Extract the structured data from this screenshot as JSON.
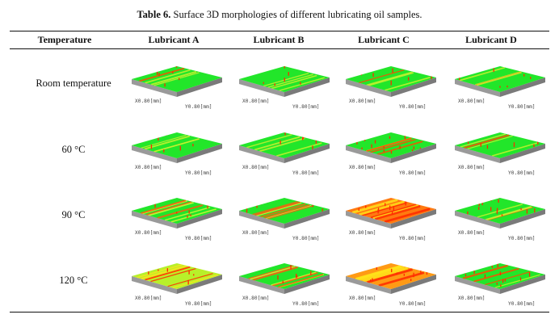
{
  "caption": {
    "label": "Table 6.",
    "text": " Surface 3D morphologies of different lubricating oil samples."
  },
  "table": {
    "header_first": "Temperature",
    "columns": [
      "Lubricant A",
      "Lubricant B",
      "Lubricant C",
      "Lubricant D"
    ],
    "rows": [
      {
        "label": "Room temperature",
        "surfaces": [
          "green-low-wear",
          "green-low-wear",
          "green-low-wear",
          "green-low-wear"
        ]
      },
      {
        "label": "60 °C",
        "surfaces": [
          "green-low-wear",
          "green-low-wear",
          "green-red-spots",
          "green-low-wear"
        ]
      },
      {
        "label": "90 °C",
        "surfaces": [
          "green-striped",
          "green-striped",
          "red-orange-heavy",
          "green-red-spots"
        ]
      },
      {
        "label": "120 °C",
        "surfaces": [
          "yellow-red-striped",
          "green-striped",
          "orange-red-heavy",
          "green-red-spots"
        ]
      }
    ],
    "axis_x_label": "X0.80[mm]",
    "axis_y_label": "Y0.80[mm]"
  },
  "colors": {
    "base": "#22e62a",
    "warm": "#ffe21a",
    "hot": "#ff2a00",
    "side": "#8c8c8c"
  }
}
